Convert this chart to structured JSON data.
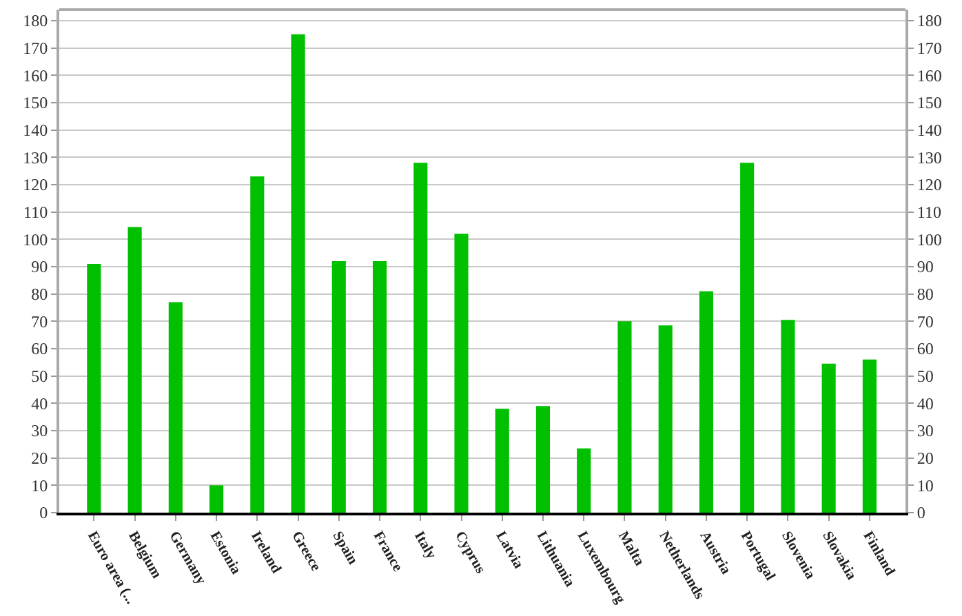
{
  "chart_data": {
    "type": "bar",
    "categories": [
      "Euro area (...",
      "Belgium",
      "Germany",
      "Estonia",
      "Ireland",
      "Greece",
      "Spain",
      "France",
      "Italy",
      "Cyprus",
      "Latvia",
      "Lithuania",
      "Luxembourg",
      "Malta",
      "Netherlands",
      "Austria",
      "Portugal",
      "Slovenia",
      "Slovakia",
      "Finland"
    ],
    "values": [
      91,
      104.5,
      77,
      10,
      123,
      175,
      92,
      92,
      128,
      102,
      38,
      39,
      23.5,
      70,
      68.5,
      81,
      128,
      70.5,
      54.5,
      56
    ],
    "color": "#00c000",
    "ylim": [
      0,
      184
    ],
    "yticks": [
      0,
      10,
      20,
      30,
      40,
      50,
      60,
      70,
      80,
      90,
      100,
      110,
      120,
      130,
      140,
      150,
      160,
      170,
      180
    ],
    "y2lim": [
      0,
      184
    ],
    "y2ticks": [
      0,
      10,
      20,
      30,
      40,
      50,
      60,
      70,
      80,
      90,
      100,
      110,
      120,
      130,
      140,
      150,
      160,
      170,
      180
    ],
    "grid": "y"
  }
}
